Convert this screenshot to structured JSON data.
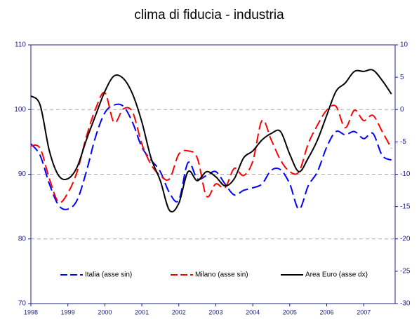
{
  "chart_data": {
    "type": "line",
    "title": "clima di fiducia - industria",
    "x": [
      1998,
      1998.25,
      1998.5,
      1998.75,
      1999,
      1999.25,
      1999.5,
      1999.75,
      2000,
      2000.25,
      2000.5,
      2000.75,
      2001,
      2001.25,
      2001.5,
      2001.75,
      2002,
      2002.25,
      2002.5,
      2002.75,
      2003,
      2003.25,
      2003.5,
      2003.75,
      2004,
      2004.25,
      2004.5,
      2004.75,
      2005,
      2005.25,
      2005.5,
      2005.75,
      2006,
      2006.25,
      2006.5,
      2006.75,
      2007,
      2007.25,
      2007.5,
      2007.75
    ],
    "series": [
      {
        "name": "Italia (asse sin)",
        "color": "#0000ff",
        "dash": true,
        "values": [
          94.7,
          92.9,
          88.5,
          85.2,
          84.6,
          86.0,
          90.4,
          95.8,
          99.5,
          100.7,
          100.5,
          98.0,
          94.2,
          92.2,
          90.4,
          87.1,
          86.0,
          91.8,
          89.3,
          89.8,
          90.4,
          88.5,
          86.8,
          87.5,
          87.9,
          88.5,
          90.6,
          90.7,
          88.5,
          84.6,
          88.2,
          90.4,
          94.2,
          96.6,
          96.1,
          96.6,
          95.5,
          96.3,
          92.9,
          92.2
        ]
      },
      {
        "name": "Milano (asse sin)",
        "color": "#ff0000",
        "dash": true,
        "values": [
          94.4,
          94.0,
          89.3,
          85.7,
          87.1,
          90.4,
          95.8,
          100.1,
          102.6,
          98.0,
          100.1,
          99.6,
          94.7,
          91.5,
          89.8,
          89.3,
          93.1,
          93.6,
          92.5,
          86.6,
          88.5,
          87.9,
          90.9,
          89.8,
          92.0,
          98.3,
          95.3,
          92.2,
          90.4,
          90.4,
          94.7,
          97.6,
          99.9,
          100.5,
          97.2,
          99.9,
          98.3,
          99.1,
          96.6,
          94.0
        ]
      },
      {
        "name": "Area Euro (asse dx)",
        "color": "#000000",
        "dash": false,
        "axis": "y2",
        "values": [
          2.1,
          0.7,
          -6.4,
          -10.2,
          -10.7,
          -8.9,
          -4.7,
          -0.9,
          2.8,
          5.2,
          4.8,
          2.4,
          -1.9,
          -7.5,
          -11.0,
          -15.6,
          -14.5,
          -9.6,
          -11.0,
          -9.6,
          -10.4,
          -11.8,
          -10.7,
          -7.5,
          -6.4,
          -4.7,
          -3.7,
          -3.4,
          -6.9,
          -9.6,
          -7.5,
          -4.7,
          -0.9,
          2.8,
          4.1,
          5.9,
          5.9,
          6.1,
          4.5,
          2.4
        ]
      }
    ],
    "xlim": [
      1998,
      2007.85
    ],
    "xticks": [
      1998,
      1999,
      2000,
      2001,
      2002,
      2003,
      2004,
      2005,
      2006,
      2007
    ],
    "ylim": [
      70,
      110
    ],
    "yticks": [
      70,
      80,
      90,
      100,
      110
    ],
    "y2lim": [
      -30,
      10
    ],
    "y2ticks": [
      -30,
      -25,
      -20,
      -15,
      -10,
      -5,
      0,
      5,
      10
    ],
    "grid": true,
    "legend": "lower center"
  }
}
